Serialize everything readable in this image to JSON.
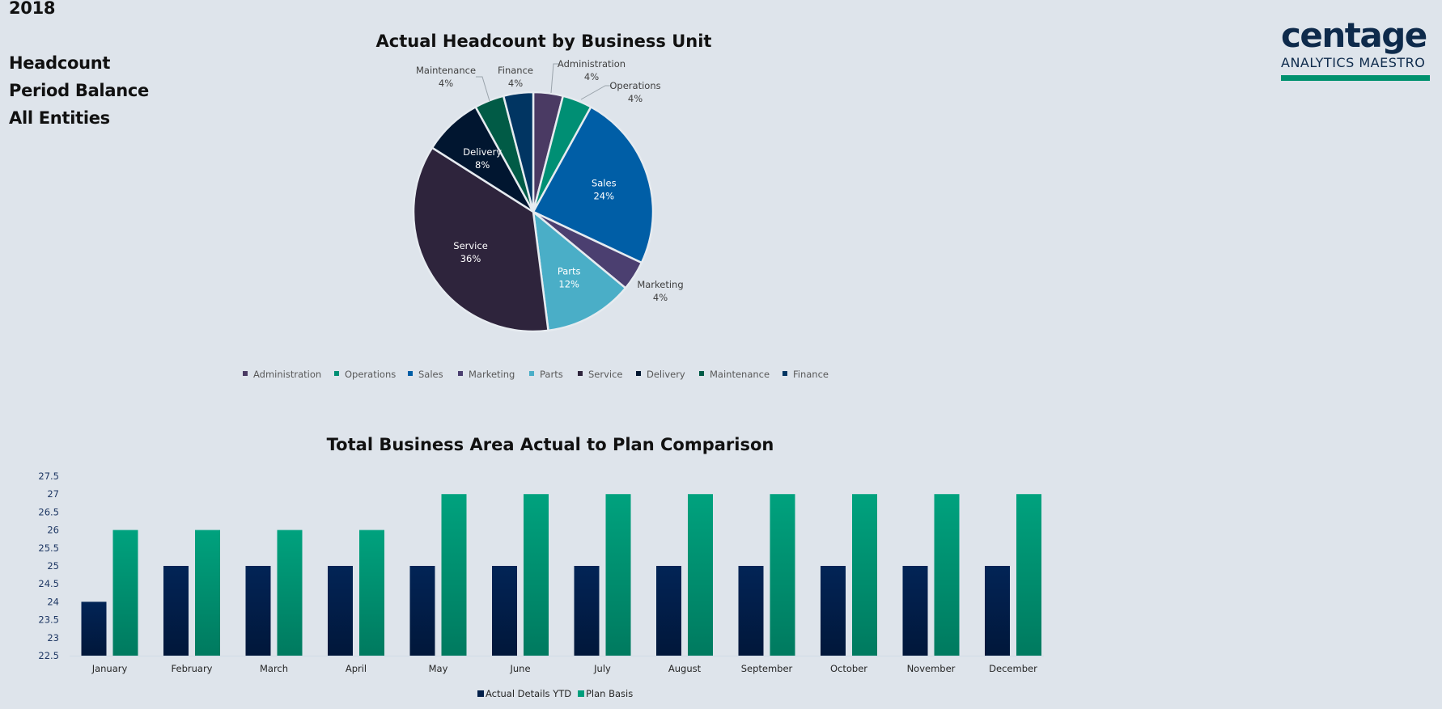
{
  "header": {
    "year": "2018",
    "lines": [
      "Headcount",
      "Period Balance",
      "All Entities"
    ]
  },
  "logo": {
    "word": "centage",
    "subtitle": "ANALYTICS MAESTRO",
    "color": "#0e2a4b",
    "accent": "#00916e"
  },
  "chart_data": [
    {
      "type": "pie",
      "title": "Actual Headcount by Business Unit",
      "legend_position": "bottom",
      "categories": [
        "Administration",
        "Operations",
        "Sales",
        "Marketing",
        "Parts",
        "Service",
        "Delivery",
        "Maintenance",
        "Finance"
      ],
      "values": [
        4,
        4,
        24,
        4,
        12,
        36,
        8,
        4,
        4
      ],
      "labels": [
        "4%",
        "4%",
        "24%",
        "4%",
        "12%",
        "36%",
        "8%",
        "4%",
        "4%"
      ],
      "colors": [
        "#4a3a63",
        "#008f74",
        "#005ea6",
        "#4b3f70",
        "#4aaec7",
        "#2e243c",
        "#011630",
        "#015b46",
        "#013562"
      ],
      "label_inside": [
        false,
        false,
        true,
        false,
        true,
        true,
        true,
        false,
        false
      ]
    },
    {
      "type": "bar",
      "title": "Total Business Area Actual to Plan Comparison",
      "xlabel": "",
      "ylabel": "",
      "ylim": [
        22.5,
        27.5
      ],
      "yticks": [
        "22.5",
        "23",
        "23.5",
        "24",
        "24.5",
        "25",
        "25.5",
        "26",
        "26.5",
        "27",
        "27.5"
      ],
      "grid": false,
      "legend_position": "bottom",
      "categories": [
        "January",
        "February",
        "March",
        "April",
        "May",
        "June",
        "July",
        "August",
        "September",
        "October",
        "November",
        "December"
      ],
      "series": [
        {
          "name": "Actual Details YTD",
          "color": "#021f4a",
          "values": [
            24,
            25,
            25,
            25,
            25,
            25,
            25,
            25,
            25,
            25,
            25,
            25
          ]
        },
        {
          "name": "Plan Basis",
          "color": "#009f7c",
          "values": [
            26,
            26,
            26,
            26,
            27,
            27,
            27,
            27,
            27,
            27,
            27,
            27
          ]
        }
      ]
    }
  ]
}
